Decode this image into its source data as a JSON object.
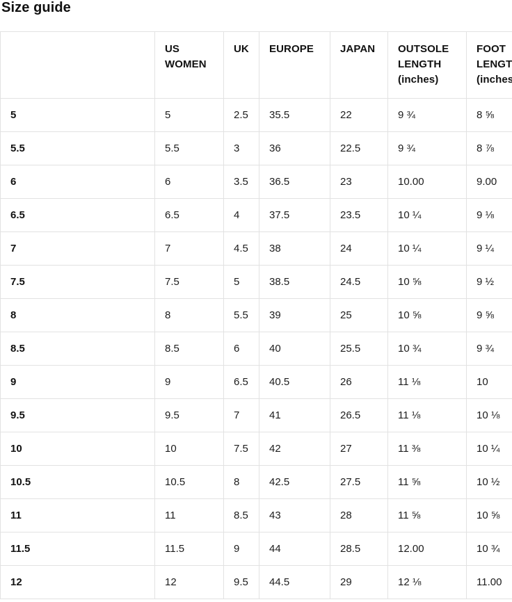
{
  "page": {
    "title": "Size guide"
  },
  "colors": {
    "background": "#ffffff",
    "border": "#e2e2e2",
    "heading_text": "#111111",
    "body_text": "#1c1c1c"
  },
  "table": {
    "columns": [
      "",
      "US WOMEN",
      "UK",
      "EUROPE",
      "JAPAN",
      "OUTSOLE LENGTH (inches)",
      "FOOT LENGTH (inches)"
    ],
    "rows": [
      {
        "label": "5",
        "us_women": "5",
        "uk": "2.5",
        "europe": "35.5",
        "japan": "22",
        "outsole_length": "9 ¾",
        "foot_length": "8 ⅝"
      },
      {
        "label": "5.5",
        "us_women": "5.5",
        "uk": "3",
        "europe": "36",
        "japan": "22.5",
        "outsole_length": "9 ¾",
        "foot_length": "8 ⅞"
      },
      {
        "label": "6",
        "us_women": "6",
        "uk": "3.5",
        "europe": "36.5",
        "japan": "23",
        "outsole_length": "10.00",
        "foot_length": "9.00"
      },
      {
        "label": "6.5",
        "us_women": "6.5",
        "uk": "4",
        "europe": "37.5",
        "japan": "23.5",
        "outsole_length": "10 ¼",
        "foot_length": "9 ⅛"
      },
      {
        "label": "7",
        "us_women": "7",
        "uk": "4.5",
        "europe": "38",
        "japan": "24",
        "outsole_length": "10 ¼",
        "foot_length": "9 ¼"
      },
      {
        "label": "7.5",
        "us_women": "7.5",
        "uk": "5",
        "europe": "38.5",
        "japan": "24.5",
        "outsole_length": "10 ⅝",
        "foot_length": "9 ½"
      },
      {
        "label": "8",
        "us_women": "8",
        "uk": "5.5",
        "europe": "39",
        "japan": "25",
        "outsole_length": "10 ⅝",
        "foot_length": "9 ⅝"
      },
      {
        "label": "8.5",
        "us_women": "8.5",
        "uk": "6",
        "europe": "40",
        "japan": "25.5",
        "outsole_length": "10 ¾",
        "foot_length": "9 ¾"
      },
      {
        "label": "9",
        "us_women": "9",
        "uk": "6.5",
        "europe": "40.5",
        "japan": "26",
        "outsole_length": "11 ⅛",
        "foot_length": "10"
      },
      {
        "label": "9.5",
        "us_women": "9.5",
        "uk": "7",
        "europe": "41",
        "japan": "26.5",
        "outsole_length": "11 ⅛",
        "foot_length": "10 ⅛"
      },
      {
        "label": "10",
        "us_women": "10",
        "uk": "7.5",
        "europe": "42",
        "japan": "27",
        "outsole_length": "11 ⅜",
        "foot_length": "10 ¼"
      },
      {
        "label": "10.5",
        "us_women": "10.5",
        "uk": "8",
        "europe": "42.5",
        "japan": "27.5",
        "outsole_length": "11 ⅝",
        "foot_length": "10 ½"
      },
      {
        "label": "11",
        "us_women": "11",
        "uk": "8.5",
        "europe": "43",
        "japan": "28",
        "outsole_length": "11 ⅝",
        "foot_length": "10 ⅝"
      },
      {
        "label": "11.5",
        "us_women": "11.5",
        "uk": "9",
        "europe": "44",
        "japan": "28.5",
        "outsole_length": "12.00",
        "foot_length": "10 ¾"
      },
      {
        "label": "12",
        "us_women": "12",
        "uk": "9.5",
        "europe": "44.5",
        "japan": "29",
        "outsole_length": "12 ⅛",
        "foot_length": "11.00"
      }
    ]
  }
}
